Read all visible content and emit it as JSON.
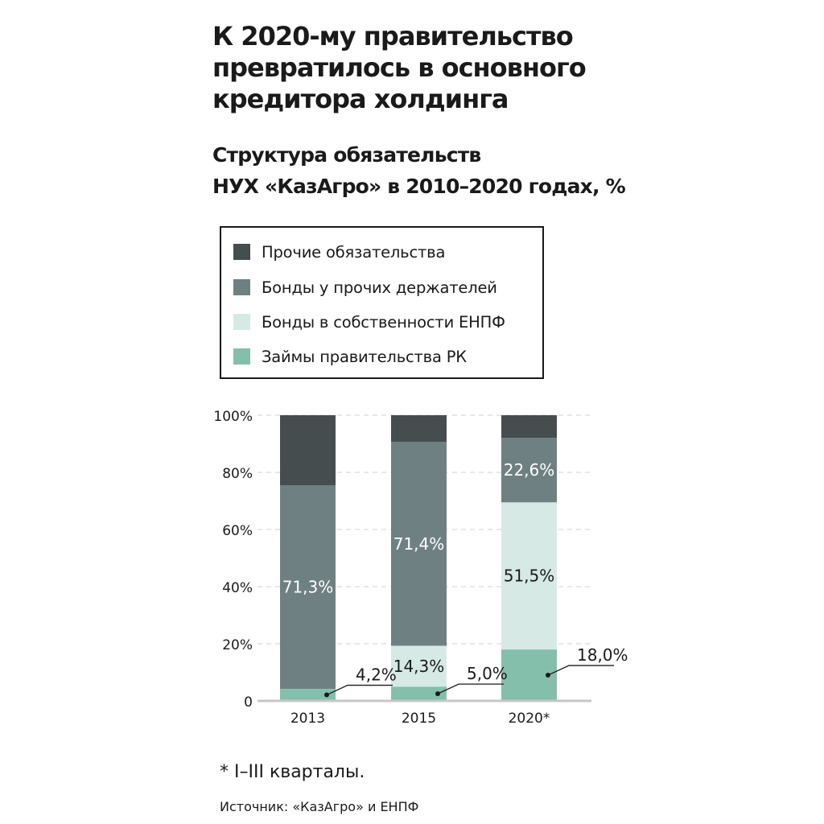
{
  "title_lines": [
    "К 2020-му правительство",
    "превратилось в основного",
    "кредитора холдинга"
  ],
  "subtitle_lines": [
    "Структура обязательств",
    "НУХ «КазАгро» в 2010–2020 годах, %"
  ],
  "legend": [
    {
      "label": "Прочие обязательства",
      "color": "#464d4f"
    },
    {
      "label": "Бонды у прочих держателей",
      "color": "#6f8082"
    },
    {
      "label": "Бонды в собственности ЕНПФ",
      "color": "#d6e9e5"
    },
    {
      "label": "Займы правительства РК",
      "color": "#84bfac"
    }
  ],
  "chart_data": {
    "type": "bar",
    "stacked": true,
    "categories": [
      "2013",
      "2015",
      "2020*"
    ],
    "series": [
      {
        "name": "Займы правительства РК",
        "values": [
          4.2,
          5.0,
          18.0
        ],
        "color": "#84bfac"
      },
      {
        "name": "Бонды в собственности ЕНПФ",
        "values": [
          0.0,
          14.3,
          51.5
        ],
        "color": "#d6e9e5"
      },
      {
        "name": "Бонды у прочих держателей",
        "values": [
          71.3,
          71.4,
          22.6
        ],
        "color": "#6f8082"
      },
      {
        "name": "Прочие обязательства",
        "values": [
          24.5,
          9.3,
          7.9
        ],
        "color": "#464d4f"
      }
    ],
    "y_ticks": [
      "0",
      "20%",
      "40%",
      "60%",
      "80%",
      "100%"
    ],
    "ylim": [
      0,
      100
    ],
    "gridlines": "dashed",
    "data_labels": [
      {
        "category": "2013",
        "series": "Бонды у прочих держателей",
        "text": "71,3%"
      },
      {
        "category": "2015",
        "series": "Бонды у прочих держателей",
        "text": "71,4%"
      },
      {
        "category": "2020*",
        "series": "Бонды у прочих держателей",
        "text": "22,6%"
      },
      {
        "category": "2015",
        "series": "Бонды в собственности ЕНПФ",
        "text": "14,3%"
      },
      {
        "category": "2020*",
        "series": "Бонды в собственности ЕНПФ",
        "text": "51,5%"
      }
    ],
    "callouts": [
      {
        "category": "2013",
        "series": "Займы правительства РК",
        "text": "4,2%"
      },
      {
        "category": "2015",
        "series": "Займы правительства РК",
        "text": "5,0%"
      },
      {
        "category": "2020*",
        "series": "Займы правительства РК",
        "text": "18,0%"
      }
    ]
  },
  "footnote": "* I–III кварталы.",
  "source": "Источник: «КазАгро» и ЕНПФ"
}
